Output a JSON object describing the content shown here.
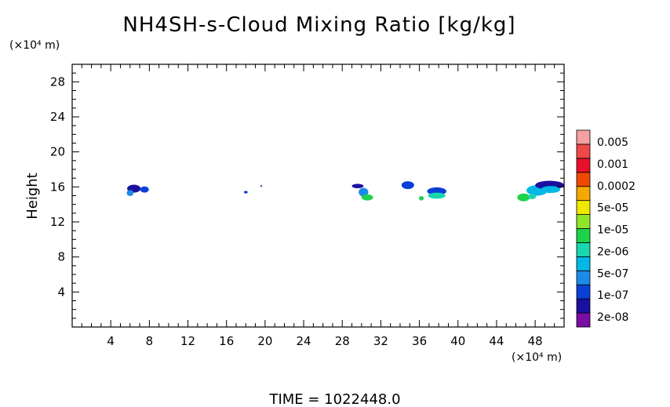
{
  "chart_data": {
    "type": "heatmap",
    "title": "NH4SH-s-Cloud Mixing Ratio [kg/kg]",
    "ylabel": "Height",
    "x_unit_label": "(×10⁴ m)",
    "y_unit_label": "(×10⁴ m)",
    "time_label": "TIME  =  1022448.0",
    "xlim": [
      0,
      51
    ],
    "ylim": [
      0,
      30
    ],
    "x_ticks": [
      4,
      8,
      12,
      16,
      20,
      24,
      28,
      32,
      36,
      40,
      44,
      48
    ],
    "y_ticks": [
      4,
      8,
      12,
      16,
      20,
      24,
      28
    ],
    "colorbar": {
      "labels": [
        "0.005",
        "0.001",
        "0.0002",
        "5e-05",
        "1e-05",
        "2e-06",
        "5e-07",
        "1e-07",
        "2e-08"
      ],
      "colors": [
        "#7a0da3",
        "#1a10a0",
        "#0a3fd8",
        "#1a8ce8",
        "#00b8e6",
        "#19d8b0",
        "#1ed34a",
        "#8ee62a",
        "#f0e800",
        "#f5a800",
        "#f04a00",
        "#e8102a",
        "#f04848",
        "#f4a0a0"
      ]
    },
    "blobs": [
      {
        "x": 6.4,
        "y": 15.8,
        "w": 1.4,
        "h": 0.9,
        "level": 1
      },
      {
        "x": 6.0,
        "y": 15.3,
        "w": 0.7,
        "h": 0.7,
        "level": 3
      },
      {
        "x": 7.5,
        "y": 15.7,
        "w": 0.9,
        "h": 0.7,
        "level": 2
      },
      {
        "x": 18.0,
        "y": 15.4,
        "w": 0.4,
        "h": 0.3,
        "level": 2
      },
      {
        "x": 19.6,
        "y": 16.1,
        "w": 0.2,
        "h": 0.2,
        "level": 0
      },
      {
        "x": 29.6,
        "y": 16.1,
        "w": 1.2,
        "h": 0.5,
        "level": 1
      },
      {
        "x": 30.2,
        "y": 15.4,
        "w": 1.0,
        "h": 1.0,
        "level": 3
      },
      {
        "x": 30.6,
        "y": 14.8,
        "w": 1.2,
        "h": 0.7,
        "level": 6
      },
      {
        "x": 34.8,
        "y": 16.2,
        "w": 1.3,
        "h": 0.9,
        "level": 2
      },
      {
        "x": 36.2,
        "y": 14.7,
        "w": 0.5,
        "h": 0.5,
        "level": 6
      },
      {
        "x": 37.8,
        "y": 15.5,
        "w": 2.0,
        "h": 0.9,
        "level": 2
      },
      {
        "x": 37.8,
        "y": 15.0,
        "w": 1.8,
        "h": 0.7,
        "level": 5
      },
      {
        "x": 46.8,
        "y": 14.8,
        "w": 1.3,
        "h": 0.9,
        "level": 6
      },
      {
        "x": 48.2,
        "y": 15.6,
        "w": 2.2,
        "h": 1.2,
        "level": 4
      },
      {
        "x": 49.5,
        "y": 16.2,
        "w": 3.0,
        "h": 1.0,
        "level": 1
      },
      {
        "x": 49.6,
        "y": 15.7,
        "w": 2.0,
        "h": 0.8,
        "level": 4
      },
      {
        "x": 47.7,
        "y": 14.9,
        "w": 0.8,
        "h": 0.6,
        "level": 5
      }
    ]
  }
}
